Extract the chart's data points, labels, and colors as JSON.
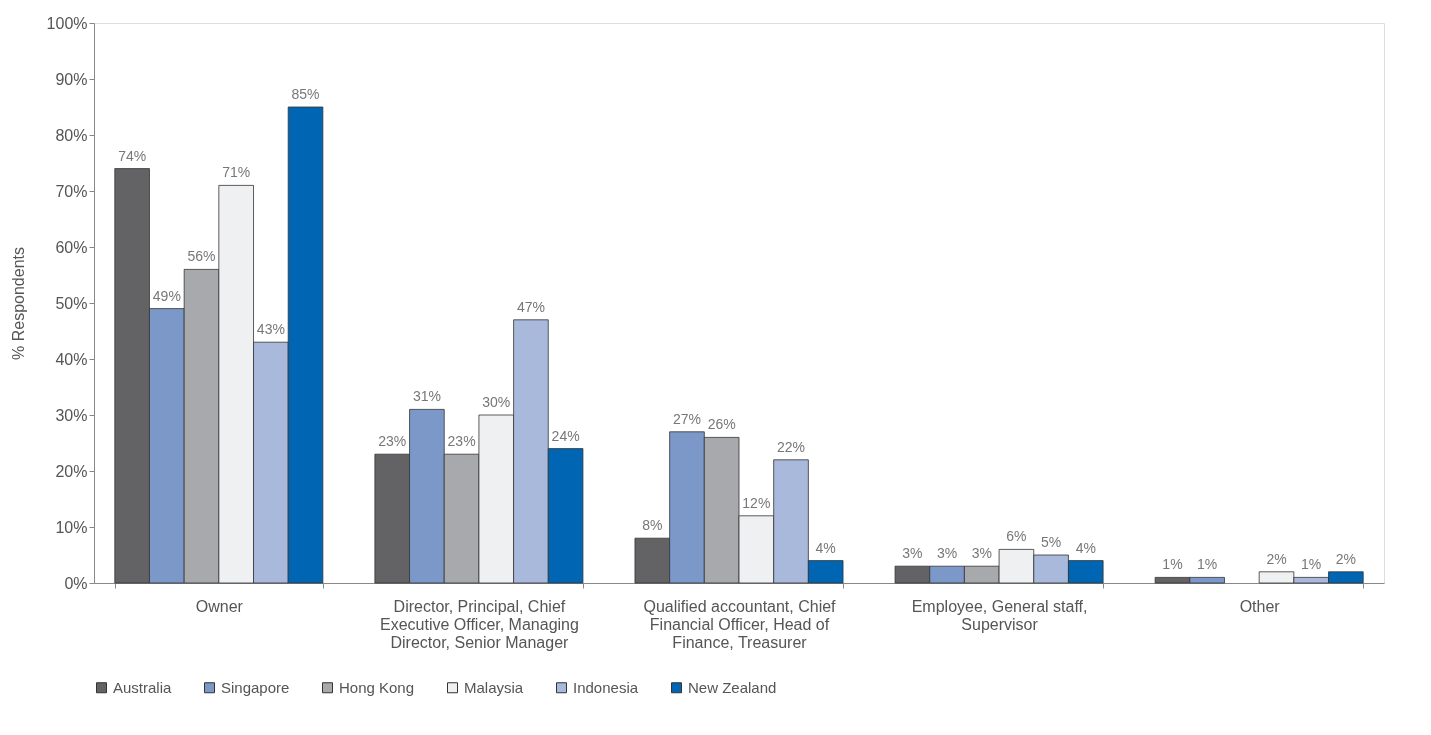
{
  "chart_data": {
    "type": "bar",
    "ylabel": "% Respondents",
    "categories": [
      "Owner",
      "Director, Principal, Chief Executive Officer, Managing Director, Senior Manager",
      "Qualified accountant, Chief Financial Officer, Head of Finance, Treasurer",
      "Employee, General staff, Supervisor",
      "Other"
    ],
    "series": [
      {
        "name": "Australia",
        "color": "#636366",
        "values": [
          74,
          23,
          8,
          3,
          1
        ],
        "value_labels": [
          "74%",
          "23%",
          "8%",
          "3%",
          "1%"
        ]
      },
      {
        "name": "Singapore",
        "color": "#7b98c9",
        "values": [
          49,
          31,
          27,
          3,
          1
        ],
        "value_labels": [
          "49%",
          "31%",
          "27%",
          "3%",
          "1%"
        ]
      },
      {
        "name": "Hong Kong",
        "color": "#a8a9ac",
        "values": [
          56,
          23,
          26,
          3,
          null
        ],
        "value_labels": [
          "56%",
          "23%",
          "26%",
          "3%",
          null
        ]
      },
      {
        "name": "Malaysia",
        "color": "#eff0f2",
        "values": [
          71,
          30,
          12,
          6,
          2
        ],
        "value_labels": [
          "71%",
          "30%",
          "12%",
          "6%",
          "2%"
        ]
      },
      {
        "name": "Indonesia",
        "color": "#a9b9dc",
        "values": [
          43,
          47,
          22,
          5,
          1
        ],
        "value_labels": [
          "43%",
          "47%",
          "22%",
          "5%",
          "1%"
        ]
      },
      {
        "name": "New Zealand",
        "color": "#0066b3",
        "values": [
          85,
          24,
          4,
          4,
          2
        ],
        "value_labels": [
          "85%",
          "24%",
          "4%",
          "4%",
          "2%"
        ]
      }
    ],
    "ylim": [
      0,
      100
    ],
    "yticks": [
      {
        "value": 0,
        "label": "0%"
      },
      {
        "value": 10,
        "label": "10%"
      },
      {
        "value": 20,
        "label": "20%"
      },
      {
        "value": 30,
        "label": "30%"
      },
      {
        "value": 40,
        "label": "40%"
      },
      {
        "value": 50,
        "label": "50%"
      },
      {
        "value": 60,
        "label": "60%"
      },
      {
        "value": 70,
        "label": "70%"
      },
      {
        "value": 80,
        "label": "80%"
      },
      {
        "value": 90,
        "label": "90%"
      },
      {
        "value": 100,
        "label": "100%"
      }
    ],
    "grid": false,
    "legend": "bottom"
  }
}
